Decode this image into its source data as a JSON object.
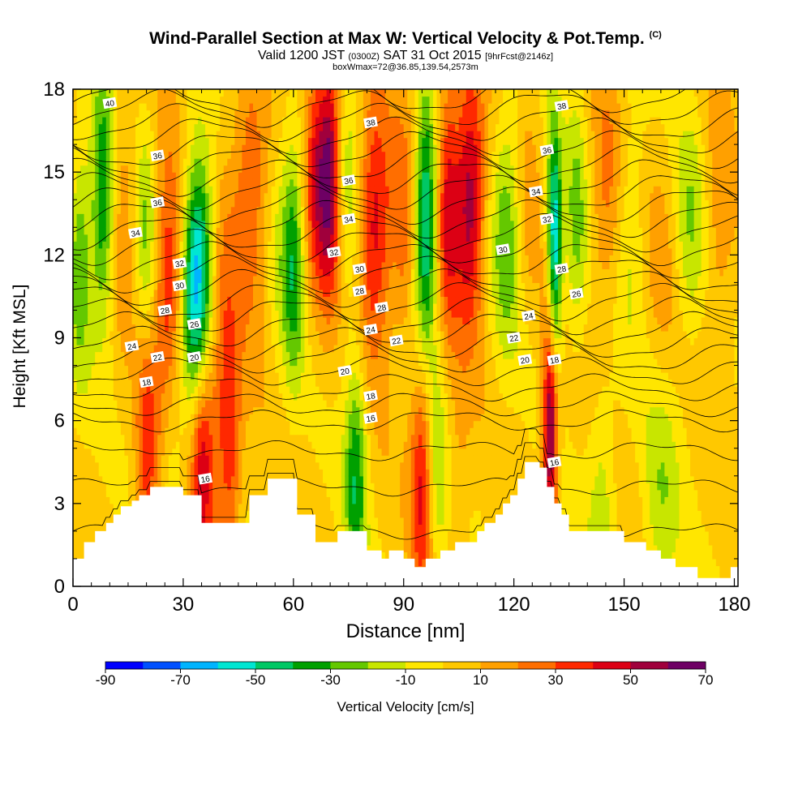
{
  "title": "Wind-Parallel Section at Max W: Vertical Velocity & Pot.Temp.",
  "copyright_mark": "(C)",
  "valid_prefix": "Valid 1200 JST",
  "valid_utc": "(0300Z)",
  "valid_date": "SAT 31 Oct 2015",
  "forecast_info": "[9hrFcst@2146z]",
  "box_info": "boxWmax=72@36.85,139.54,2573m",
  "chart_data": {
    "type": "heatmap",
    "xlabel": "Distance [nm]",
    "ylabel": "Height [Kft MSL]",
    "xlim": [
      0,
      181
    ],
    "ylim": [
      0,
      18
    ],
    "x_ticks": [
      "0",
      "30",
      "60",
      "90",
      "120",
      "150",
      "180"
    ],
    "y_ticks": [
      "0",
      "3",
      "6",
      "9",
      "12",
      "15",
      "18"
    ],
    "x_tick_values": [
      0,
      30,
      60,
      90,
      120,
      150,
      180
    ],
    "y_tick_values": [
      0,
      3,
      6,
      9,
      12,
      15,
      18
    ],
    "colorbar": {
      "title": "Vertical Velocity [cm/s]",
      "labels": [
        "-90",
        "-70",
        "-50",
        "-30",
        "-10",
        "10",
        "30",
        "50",
        "70"
      ],
      "colors": [
        "#0000ff",
        "#0050ff",
        "#00b4ff",
        "#00e6d2",
        "#00c864",
        "#00a000",
        "#64c800",
        "#c8e600",
        "#ffe600",
        "#ffc800",
        "#ffa000",
        "#ff6e00",
        "#ff2800",
        "#dc0014",
        "#a0003c",
        "#6e0064"
      ]
    },
    "colormap_thresholds": [
      -90,
      -80,
      -70,
      -60,
      -50,
      -40,
      -30,
      -20,
      -10,
      0,
      10,
      20,
      30,
      40,
      50,
      60,
      70
    ],
    "vertical_velocity_features": [
      {
        "x": 2,
        "z": 12,
        "width": 3,
        "w": -30
      },
      {
        "x": 8,
        "z": 14,
        "width": 3,
        "w": -45
      },
      {
        "x": 14,
        "z": 14,
        "width": 3,
        "w": 15
      },
      {
        "x": 20,
        "z": 12,
        "width": 3,
        "w": -25
      },
      {
        "x": 26,
        "z": 11,
        "width": 4,
        "w": 40
      },
      {
        "x": 34,
        "z": 11,
        "width": 4,
        "w": -75
      },
      {
        "x": 41,
        "z": 12,
        "width": 3,
        "w": 10
      },
      {
        "x": 48,
        "z": 14,
        "width": 5,
        "w": 30
      },
      {
        "x": 56,
        "z": 13,
        "width": 3,
        "w": -10
      },
      {
        "x": 60,
        "z": 12,
        "width": 3,
        "w": -40
      },
      {
        "x": 66,
        "z": 15,
        "width": 3,
        "w": 35
      },
      {
        "x": 70,
        "z": 15,
        "width": 3,
        "w": 60
      },
      {
        "x": 75,
        "z": 14,
        "width": 4,
        "w": -20
      },
      {
        "x": 82,
        "z": 13,
        "width": 5,
        "w": 45
      },
      {
        "x": 90,
        "z": 13,
        "width": 3,
        "w": 20
      },
      {
        "x": 96,
        "z": 13,
        "width": 3,
        "w": -60
      },
      {
        "x": 102,
        "z": 14,
        "width": 3,
        "w": 40
      },
      {
        "x": 108,
        "z": 14,
        "width": 4,
        "w": 55
      },
      {
        "x": 118,
        "z": 13,
        "width": 4,
        "w": -30
      },
      {
        "x": 124,
        "z": 14,
        "width": 3,
        "w": 10
      },
      {
        "x": 131,
        "z": 12,
        "width": 2,
        "w": -70
      },
      {
        "x": 130,
        "z": 6,
        "width": 2,
        "w": 70
      },
      {
        "x": 137,
        "z": 13,
        "width": 3,
        "w": -25
      },
      {
        "x": 145,
        "z": 14,
        "width": 4,
        "w": 20
      },
      {
        "x": 152,
        "z": 13,
        "width": 4,
        "w": -15
      },
      {
        "x": 160,
        "z": 12,
        "width": 4,
        "w": 10
      },
      {
        "x": 168,
        "z": 13,
        "width": 4,
        "w": -20
      },
      {
        "x": 176,
        "z": 13,
        "width": 4,
        "w": 15
      },
      {
        "x": 35,
        "z": 5,
        "width": 3,
        "w": 45
      },
      {
        "x": 39,
        "z": 6,
        "width": 4,
        "w": 20
      },
      {
        "x": 43,
        "z": 5,
        "width": 3,
        "w": 30
      },
      {
        "x": 20,
        "z": 5,
        "width": 3,
        "w": 35
      },
      {
        "x": 27,
        "z": 4,
        "width": 3,
        "w": -15
      },
      {
        "x": 77,
        "z": 4,
        "width": 3,
        "w": -40
      },
      {
        "x": 95,
        "z": 4,
        "width": 3,
        "w": 40
      },
      {
        "x": 99,
        "z": 4,
        "width": 3,
        "w": -20
      },
      {
        "x": 105,
        "z": 4,
        "width": 3,
        "w": 10
      },
      {
        "x": 144,
        "z": 3,
        "width": 4,
        "w": -20
      },
      {
        "x": 160,
        "z": 3,
        "width": 5,
        "w": -20
      }
    ],
    "theta_contour_labels": [
      {
        "text": "40",
        "x": 10,
        "z": 17.5
      },
      {
        "text": "38",
        "x": 81,
        "z": 16.8
      },
      {
        "text": "38",
        "x": 133,
        "z": 17.4
      },
      {
        "text": "36",
        "x": 23,
        "z": 15.6
      },
      {
        "text": "36",
        "x": 75,
        "z": 14.7
      },
      {
        "text": "36",
        "x": 129,
        "z": 15.8
      },
      {
        "text": "36",
        "x": 23,
        "z": 13.9
      },
      {
        "text": "34",
        "x": 75,
        "z": 13.3
      },
      {
        "text": "34",
        "x": 126,
        "z": 14.3
      },
      {
        "text": "34",
        "x": 17,
        "z": 12.8
      },
      {
        "text": "32",
        "x": 71,
        "z": 12.1
      },
      {
        "text": "32",
        "x": 129,
        "z": 13.3
      },
      {
        "text": "32",
        "x": 29,
        "z": 11.7
      },
      {
        "text": "30",
        "x": 78,
        "z": 11.5
      },
      {
        "text": "30",
        "x": 117,
        "z": 12.2
      },
      {
        "text": "30",
        "x": 29,
        "z": 10.9
      },
      {
        "text": "28",
        "x": 78,
        "z": 10.7
      },
      {
        "text": "28",
        "x": 133,
        "z": 11.5
      },
      {
        "text": "28",
        "x": 25,
        "z": 10.0
      },
      {
        "text": "28",
        "x": 84,
        "z": 10.1
      },
      {
        "text": "26",
        "x": 137,
        "z": 10.6
      },
      {
        "text": "26",
        "x": 33,
        "z": 9.5
      },
      {
        "text": "24",
        "x": 81,
        "z": 9.3
      },
      {
        "text": "24",
        "x": 124,
        "z": 9.8
      },
      {
        "text": "24",
        "x": 16,
        "z": 8.7
      },
      {
        "text": "22",
        "x": 88,
        "z": 8.9
      },
      {
        "text": "22",
        "x": 120,
        "z": 9.0
      },
      {
        "text": "22",
        "x": 23,
        "z": 8.3
      },
      {
        "text": "20",
        "x": 33,
        "z": 8.3
      },
      {
        "text": "20",
        "x": 74,
        "z": 7.8
      },
      {
        "text": "20",
        "x": 123,
        "z": 8.2
      },
      {
        "text": "18",
        "x": 131,
        "z": 8.2
      },
      {
        "text": "18",
        "x": 20,
        "z": 7.4
      },
      {
        "text": "18",
        "x": 81,
        "z": 6.9
      },
      {
        "text": "16",
        "x": 81,
        "z": 6.1
      },
      {
        "text": "16",
        "x": 36,
        "z": 3.9
      },
      {
        "text": "16",
        "x": 131,
        "z": 4.5
      }
    ],
    "theta_isentrope_base_heights": [
      2.0,
      3.6,
      4.9,
      6.0,
      6.6,
      7.2,
      7.8,
      8.3,
      8.8,
      9.3,
      9.8,
      10.3,
      10.8,
      11.3,
      11.8,
      12.3,
      12.8,
      13.3,
      13.8,
      14.3,
      14.8,
      15.3,
      15.8,
      16.3,
      16.8,
      17.3,
      17.8
    ],
    "terrain": [
      [
        0,
        1.0
      ],
      [
        3,
        1.0
      ],
      [
        3,
        1.6
      ],
      [
        6,
        1.6
      ],
      [
        6,
        2.0
      ],
      [
        9,
        2.0
      ],
      [
        9,
        2.3
      ],
      [
        11,
        2.3
      ],
      [
        11,
        2.6
      ],
      [
        13,
        2.6
      ],
      [
        13,
        2.9
      ],
      [
        16,
        2.9
      ],
      [
        16,
        3.1
      ],
      [
        18,
        3.1
      ],
      [
        18,
        3.3
      ],
      [
        21,
        3.3
      ],
      [
        21,
        3.6
      ],
      [
        30,
        3.6
      ],
      [
        30,
        3.3
      ],
      [
        35,
        3.3
      ],
      [
        35,
        2.3
      ],
      [
        48,
        2.3
      ],
      [
        48,
        3.3
      ],
      [
        53,
        3.3
      ],
      [
        53,
        3.9
      ],
      [
        61,
        3.9
      ],
      [
        61,
        2.6
      ],
      [
        66,
        2.6
      ],
      [
        66,
        1.6
      ],
      [
        72,
        1.6
      ],
      [
        72,
        2.0
      ],
      [
        80,
        2.0
      ],
      [
        80,
        1.3
      ],
      [
        84,
        1.3
      ],
      [
        84,
        1.0
      ],
      [
        86,
        1.0
      ],
      [
        86,
        1.3
      ],
      [
        90,
        1.3
      ],
      [
        90,
        1.0
      ],
      [
        93,
        1.0
      ],
      [
        93,
        0.7
      ],
      [
        96,
        0.7
      ],
      [
        96,
        1.0
      ],
      [
        100,
        1.0
      ],
      [
        100,
        1.3
      ],
      [
        104,
        1.3
      ],
      [
        104,
        1.6
      ],
      [
        110,
        1.6
      ],
      [
        110,
        2.0
      ],
      [
        112,
        2.0
      ],
      [
        112,
        2.3
      ],
      [
        115,
        2.3
      ],
      [
        115,
        2.6
      ],
      [
        117,
        2.6
      ],
      [
        117,
        3.0
      ],
      [
        119,
        3.0
      ],
      [
        119,
        3.3
      ],
      [
        121,
        3.3
      ],
      [
        121,
        3.9
      ],
      [
        123,
        3.9
      ],
      [
        123,
        4.5
      ],
      [
        127,
        4.5
      ],
      [
        127,
        4.3
      ],
      [
        129,
        4.3
      ],
      [
        129,
        3.6
      ],
      [
        131,
        3.6
      ],
      [
        131,
        3.0
      ],
      [
        133,
        3.0
      ],
      [
        133,
        2.6
      ],
      [
        135,
        2.6
      ],
      [
        135,
        2.0
      ],
      [
        150,
        2.0
      ],
      [
        150,
        1.6
      ],
      [
        156,
        1.6
      ],
      [
        156,
        1.3
      ],
      [
        160,
        1.3
      ],
      [
        160,
        1.0
      ],
      [
        164,
        1.0
      ],
      [
        164,
        0.7
      ],
      [
        170,
        0.7
      ],
      [
        170,
        0.3
      ],
      [
        179,
        0.3
      ],
      [
        179,
        0.7
      ],
      [
        181,
        0.7
      ]
    ]
  }
}
